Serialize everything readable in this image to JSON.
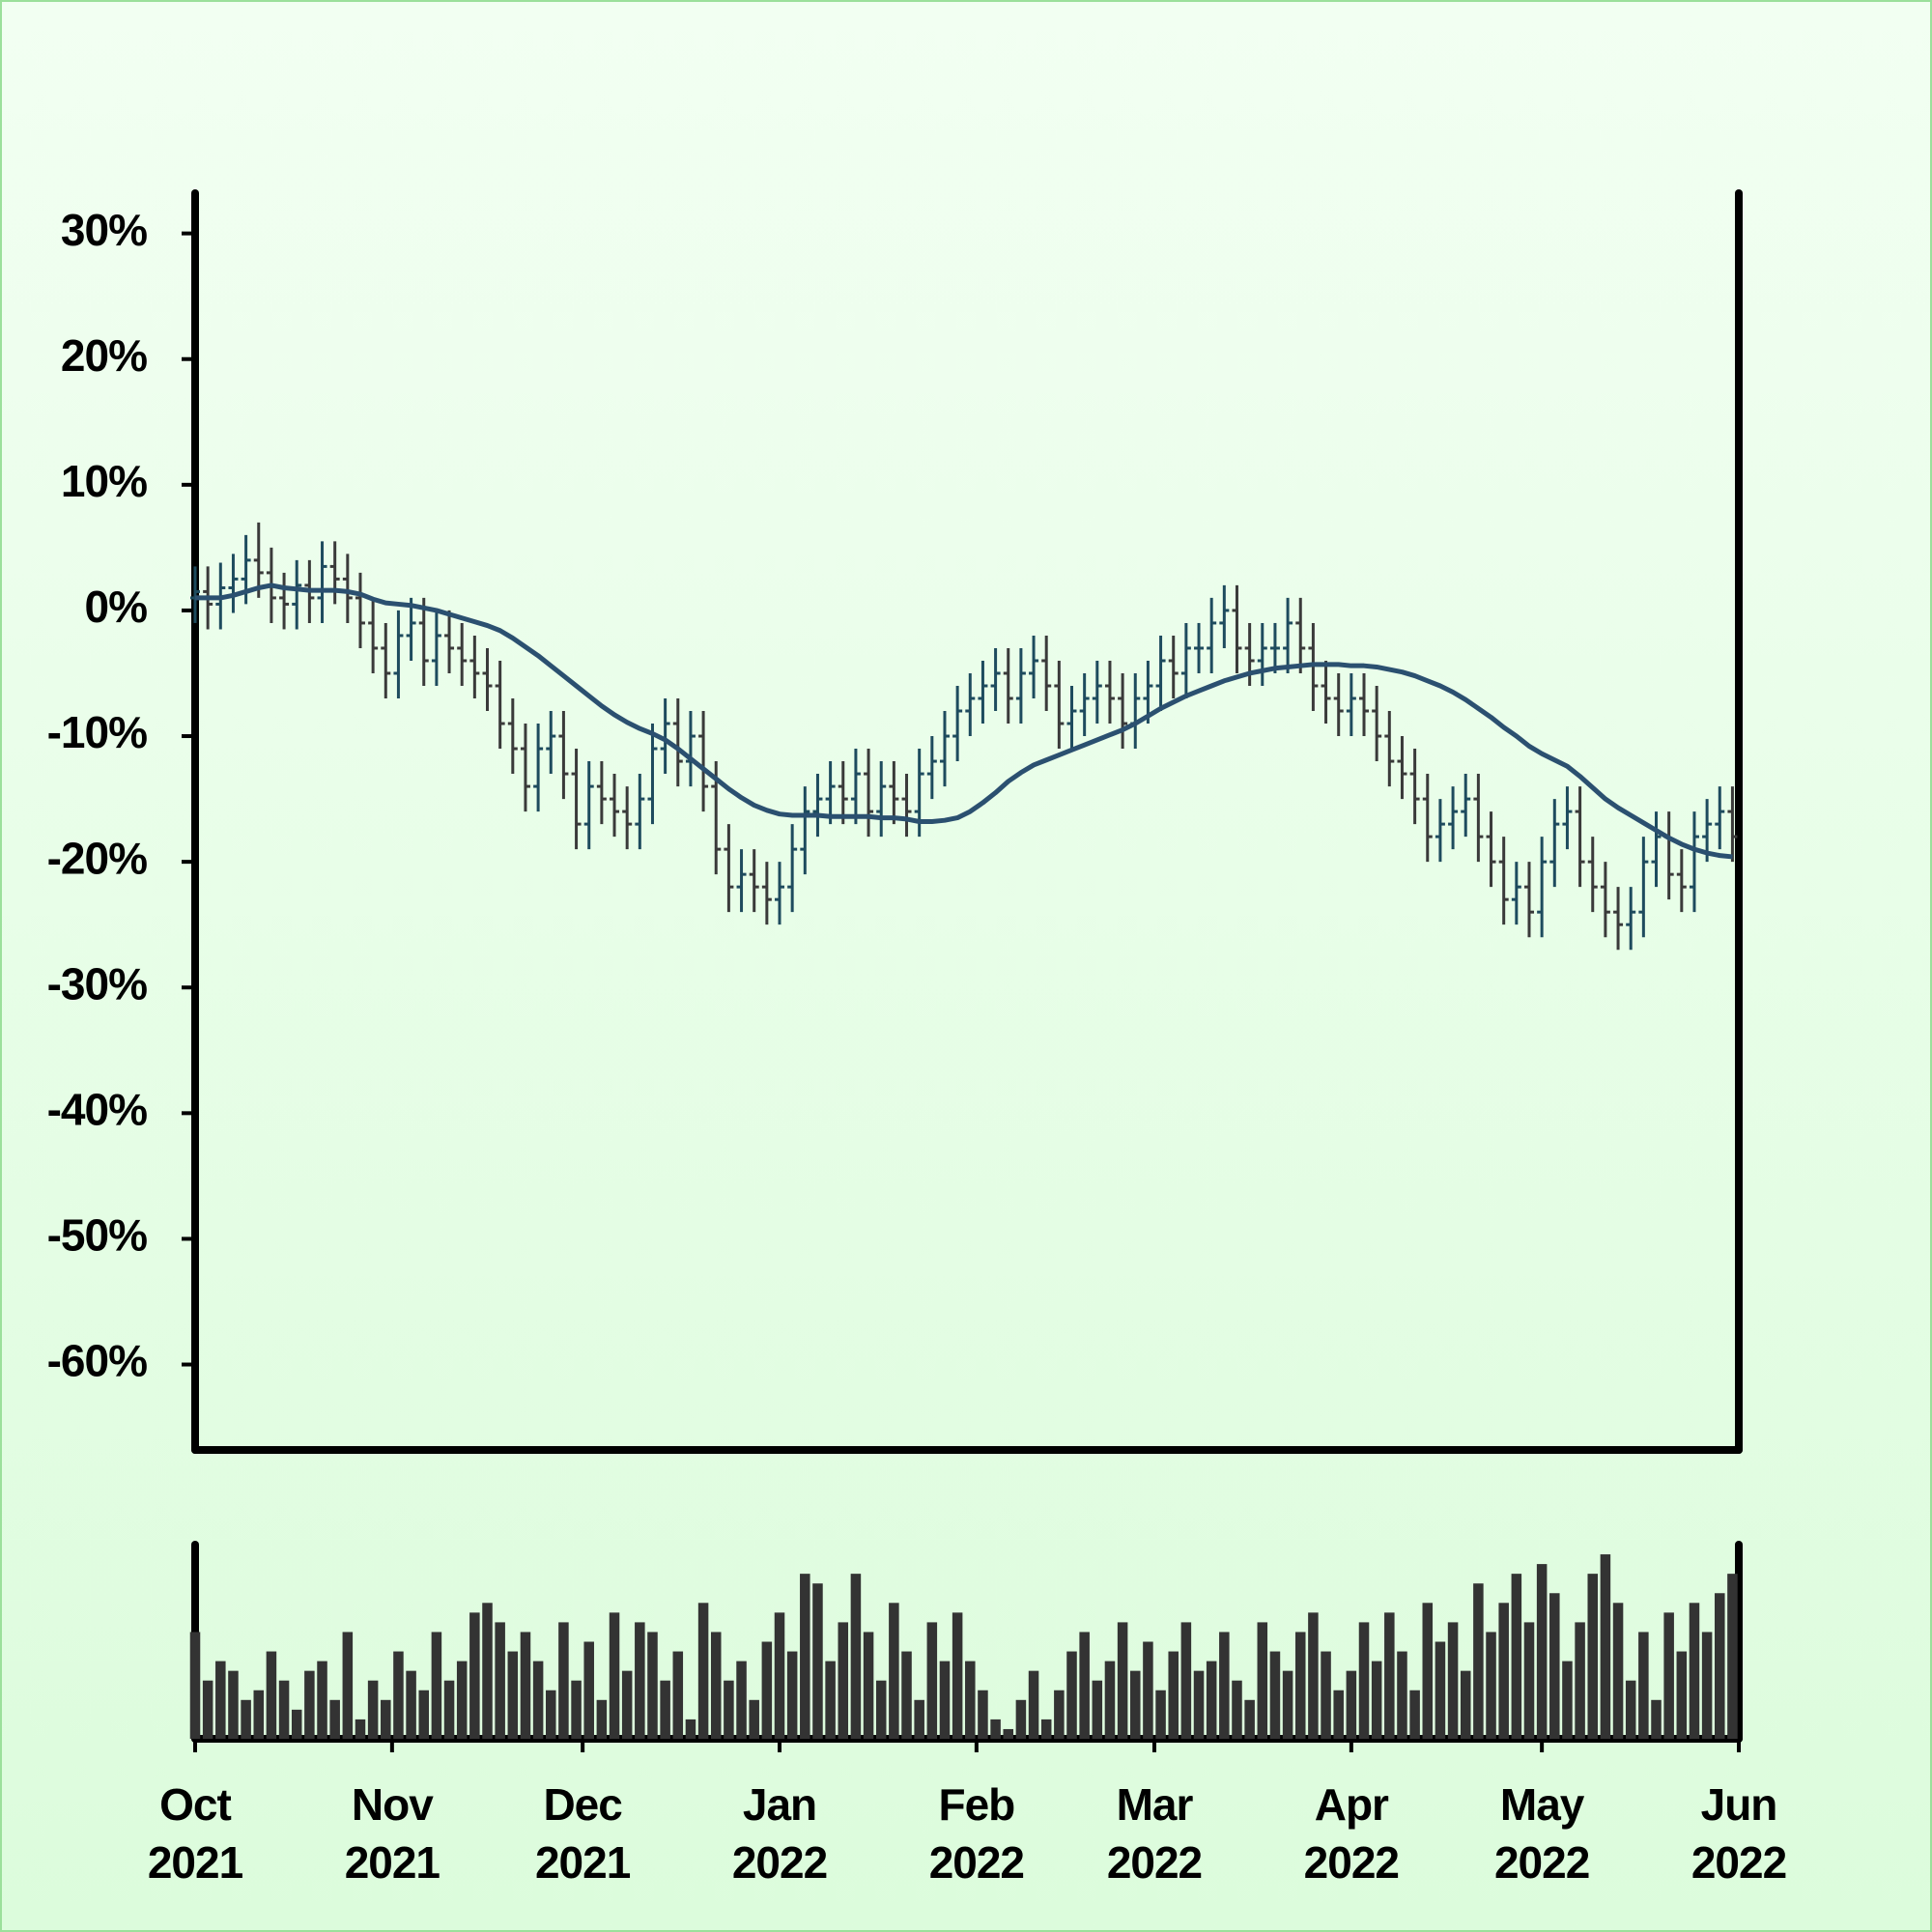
{
  "chart_data": {
    "type": "ohlc",
    "x": [
      0,
      2,
      4,
      6,
      8,
      10,
      12,
      14,
      16,
      18,
      20,
      22,
      24,
      26,
      28,
      30,
      32,
      34,
      36,
      38,
      40,
      42,
      44,
      46,
      48,
      50,
      52,
      54,
      56,
      58,
      60,
      62,
      64,
      66,
      68,
      70,
      72,
      74,
      76,
      78,
      80,
      82,
      84,
      86,
      88,
      90,
      92,
      94,
      96,
      98,
      100,
      102,
      104,
      106,
      108,
      110,
      112,
      114,
      116,
      118,
      120,
      122,
      124,
      126,
      128,
      130,
      132,
      134,
      136,
      138,
      140,
      142,
      144,
      146,
      148,
      150,
      152,
      154,
      156,
      158,
      160,
      162,
      164,
      166,
      168,
      170,
      172,
      174,
      176,
      178,
      180,
      182,
      184,
      186,
      188,
      190,
      192,
      194,
      196,
      198,
      200,
      202,
      204,
      206,
      208,
      210,
      212,
      214,
      216,
      218,
      220,
      222,
      224,
      226,
      228,
      230,
      232,
      234,
      236,
      238,
      240,
      242
    ],
    "open": [
      1,
      1.5,
      0.5,
      1.8,
      2.5,
      4,
      3,
      1,
      0.5,
      2,
      1,
      3.5,
      2.5,
      1,
      -1,
      -3,
      -5,
      -2,
      -1,
      -4,
      -2,
      -3,
      -4,
      -5,
      -6,
      -9,
      -11,
      -14,
      -11,
      -10,
      -13,
      -17,
      -14,
      -15,
      -16,
      -17,
      -15,
      -11,
      -9,
      -12,
      -10,
      -14,
      -19,
      -22,
      -21,
      -22,
      -23,
      -22,
      -19,
      -16,
      -15,
      -14,
      -15,
      -13,
      -16,
      -14,
      -15,
      -16,
      -13,
      -12,
      -10,
      -8,
      -7,
      -6,
      -5,
      -7,
      -5,
      -4,
      -6,
      -9,
      -8,
      -7,
      -6,
      -7,
      -9,
      -7,
      -6,
      -4,
      -5,
      -3,
      -3,
      -1,
      0,
      -3,
      -4,
      -3,
      -3,
      -1,
      -3,
      -6,
      -7,
      -8,
      -7,
      -8,
      -10,
      -12,
      -13,
      -15,
      -18,
      -17,
      -16,
      -15,
      -18,
      -20,
      -23,
      -22,
      -24,
      -20,
      -17,
      -16,
      -20,
      -22,
      -24,
      -25,
      -24,
      -20,
      -18,
      -21,
      -22,
      -18,
      -17,
      -16
    ],
    "high": [
      3.5,
      3.5,
      3.8,
      4.5,
      6,
      7,
      5,
      3,
      4,
      4,
      5.5,
      5.5,
      4.5,
      3,
      1,
      -1,
      0,
      1,
      1,
      0,
      0,
      -1,
      -2,
      -3,
      -4,
      -7,
      -9,
      -9,
      -8,
      -8,
      -11,
      -12,
      -12,
      -13,
      -14,
      -13,
      -9,
      -7,
      -7,
      -8,
      -8,
      -12,
      -17,
      -19,
      -19,
      -20,
      -20,
      -17,
      -14,
      -13,
      -12,
      -12,
      -11,
      -11,
      -12,
      -12,
      -13,
      -11,
      -10,
      -8,
      -6,
      -5,
      -4,
      -3,
      -3,
      -3,
      -2,
      -2,
      -4,
      -6,
      -5,
      -4,
      -4,
      -5,
      -5,
      -4,
      -2,
      -2,
      -1,
      -1,
      1,
      2,
      2,
      -1,
      -1,
      -1,
      1,
      1,
      -1,
      -4,
      -5,
      -5,
      -5,
      -6,
      -8,
      -10,
      -11,
      -13,
      -15,
      -14,
      -13,
      -13,
      -16,
      -18,
      -20,
      -20,
      -18,
      -15,
      -14,
      -14,
      -18,
      -20,
      -22,
      -22,
      -18,
      -16,
      -16,
      -19,
      -16,
      -15,
      -14,
      -14
    ],
    "low": [
      -1,
      -1.5,
      -1.5,
      -0.2,
      0.5,
      1,
      -1,
      -1.5,
      -1.5,
      -1,
      -1,
      0.5,
      -1,
      -3,
      -5,
      -7,
      -7,
      -4,
      -6,
      -6,
      -5,
      -6,
      -7,
      -8,
      -11,
      -13,
      -16,
      -16,
      -13,
      -15,
      -19,
      -19,
      -17,
      -18,
      -19,
      -19,
      -17,
      -13,
      -14,
      -14,
      -16,
      -21,
      -24,
      -24,
      -24,
      -25,
      -25,
      -24,
      -21,
      -18,
      -17,
      -17,
      -17,
      -18,
      -18,
      -17,
      -18,
      -18,
      -15,
      -14,
      -12,
      -10,
      -9,
      -8,
      -9,
      -9,
      -7,
      -8,
      -11,
      -11,
      -10,
      -9,
      -9,
      -11,
      -11,
      -9,
      -8,
      -7,
      -7,
      -5,
      -5,
      -3,
      -5,
      -6,
      -6,
      -5,
      -5,
      -5,
      -8,
      -9,
      -10,
      -10,
      -10,
      -12,
      -14,
      -15,
      -17,
      -20,
      -20,
      -19,
      -18,
      -20,
      -22,
      -25,
      -25,
      -26,
      -26,
      -22,
      -19,
      -22,
      -24,
      -26,
      -27,
      -27,
      -26,
      -22,
      -23,
      -24,
      -24,
      -20,
      -19,
      -20
    ],
    "close": [
      1.5,
      0.5,
      1.8,
      2.5,
      4,
      3,
      1,
      0.5,
      2,
      1,
      3.5,
      2.5,
      1,
      -1,
      -3,
      -5,
      -2,
      -1,
      -4,
      -2,
      -3,
      -4,
      -5,
      -6,
      -9,
      -11,
      -14,
      -11,
      -10,
      -13,
      -17,
      -14,
      -15,
      -16,
      -17,
      -15,
      -11,
      -9,
      -12,
      -10,
      -14,
      -19,
      -22,
      -21,
      -22,
      -23,
      -22,
      -19,
      -16,
      -15,
      -14,
      -15,
      -13,
      -16,
      -14,
      -15,
      -16,
      -13,
      -12,
      -10,
      -8,
      -7,
      -6,
      -5,
      -7,
      -5,
      -4,
      -6,
      -9,
      -8,
      -7,
      -6,
      -7,
      -9,
      -7,
      -6,
      -4,
      -5,
      -3,
      -3,
      -1,
      0,
      -3,
      -4,
      -3,
      -3,
      -1,
      -3,
      -6,
      -7,
      -8,
      -7,
      -8,
      -10,
      -12,
      -13,
      -15,
      -18,
      -17,
      -16,
      -15,
      -18,
      -20,
      -23,
      -22,
      -24,
      -20,
      -17,
      -16,
      -20,
      -22,
      -24,
      -25,
      -24,
      -20,
      -18,
      -21,
      -22,
      -18,
      -17,
      -16,
      -18
    ],
    "up_color": "#1e4b5e",
    "down_color": "#3a3a3a",
    "moving_average": {
      "color": "#2b5070",
      "values": [
        1,
        1,
        1,
        1.2,
        1.5,
        1.8,
        2,
        1.8,
        1.7,
        1.6,
        1.6,
        1.6,
        1.5,
        1.3,
        0.9,
        0.6,
        0.5,
        0.4,
        0.2,
        0,
        -0.3,
        -0.6,
        -0.9,
        -1.2,
        -1.6,
        -2.2,
        -2.9,
        -3.6,
        -4.4,
        -5.2,
        -6,
        -6.8,
        -7.6,
        -8.3,
        -8.9,
        -9.4,
        -9.8,
        -10.3,
        -11,
        -11.8,
        -12.6,
        -13.4,
        -14.2,
        -14.9,
        -15.5,
        -15.9,
        -16.2,
        -16.3,
        -16.3,
        -16.3,
        -16.4,
        -16.4,
        -16.4,
        -16.4,
        -16.5,
        -16.5,
        -16.6,
        -16.8,
        -16.8,
        -16.7,
        -16.5,
        -16,
        -15.3,
        -14.5,
        -13.6,
        -12.9,
        -12.3,
        -11.9,
        -11.5,
        -11.1,
        -10.7,
        -10.3,
        -9.9,
        -9.5,
        -9,
        -8.4,
        -7.8,
        -7.3,
        -6.8,
        -6.4,
        -6,
        -5.6,
        -5.3,
        -5,
        -4.8,
        -4.6,
        -4.5,
        -4.4,
        -4.3,
        -4.3,
        -4.3,
        -4.4,
        -4.4,
        -4.5,
        -4.7,
        -4.9,
        -5.2,
        -5.6,
        -6,
        -6.5,
        -7.1,
        -7.8,
        -8.5,
        -9.3,
        -10,
        -10.8,
        -11.4,
        -11.9,
        -12.4,
        -13.2,
        -14.1,
        -15,
        -15.7,
        -16.3,
        -16.9,
        -17.5,
        -18.1,
        -18.6,
        -19,
        -19.3,
        -19.5,
        -19.6
      ]
    },
    "volume": {
      "color": "#333333",
      "ylim": [
        0,
        100
      ],
      "values": [
        55,
        30,
        40,
        35,
        20,
        25,
        45,
        30,
        15,
        35,
        40,
        20,
        55,
        10,
        30,
        20,
        45,
        35,
        25,
        55,
        30,
        40,
        65,
        70,
        60,
        45,
        55,
        40,
        25,
        60,
        30,
        50,
        20,
        65,
        35,
        60,
        55,
        30,
        45,
        10,
        70,
        55,
        30,
        40,
        20,
        50,
        65,
        45,
        85,
        80,
        40,
        60,
        85,
        55,
        30,
        70,
        45,
        20,
        60,
        40,
        65,
        40,
        25,
        10,
        5,
        20,
        35,
        10,
        25,
        45,
        55,
        30,
        40,
        60,
        35,
        50,
        25,
        45,
        60,
        35,
        40,
        55,
        30,
        20,
        60,
        45,
        35,
        55,
        65,
        45,
        25,
        35,
        60,
        40,
        65,
        45,
        25,
        70,
        50,
        60,
        35,
        80,
        55,
        70,
        85,
        60,
        90,
        75,
        40,
        60,
        85,
        95,
        70,
        30,
        55,
        20,
        65,
        45,
        70,
        55,
        75,
        85
      ]
    },
    "xlim": [
      0,
      243
    ],
    "xticks": [
      {
        "value": 0,
        "label": "Oct\n2021"
      },
      {
        "value": 31,
        "label": "Nov\n2021"
      },
      {
        "value": 61,
        "label": "Dec\n2021"
      },
      {
        "value": 92,
        "label": "Jan\n2022"
      },
      {
        "value": 123,
        "label": "Feb\n2022"
      },
      {
        "value": 151,
        "label": "Mar\n2022"
      },
      {
        "value": 182,
        "label": "Apr\n2022"
      },
      {
        "value": 212,
        "label": "May\n2022"
      },
      {
        "value": 243,
        "label": "Jun\n2022"
      }
    ],
    "ylim": [
      -66.8,
      33.2
    ],
    "yticks": [
      {
        "value": 30,
        "label": "30%"
      },
      {
        "value": 20,
        "label": "20%"
      },
      {
        "value": 10,
        "label": "10%"
      },
      {
        "value": 0,
        "label": "0%"
      },
      {
        "value": -10,
        "label": "-10%"
      },
      {
        "value": -20,
        "label": "-20%"
      },
      {
        "value": -30,
        "label": "-30%"
      },
      {
        "value": -40,
        "label": "-40%"
      },
      {
        "value": -50,
        "label": "-50%"
      },
      {
        "value": -60,
        "label": "-60%"
      }
    ]
  }
}
